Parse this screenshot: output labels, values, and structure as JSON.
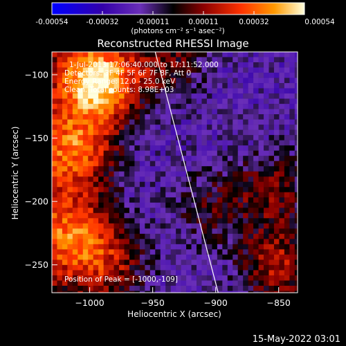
{
  "colors": {
    "background": "#000000",
    "colormap": [
      "#0000ff",
      "#4b0082",
      "#7a2fc8",
      "#000000",
      "#8b0000",
      "#ff3300",
      "#ff9900",
      "#ffff88",
      "#ffffff"
    ]
  },
  "colorbar": {
    "tick_labels": [
      "-0.00054",
      "-0.00032",
      "-0.00011",
      "0.00011",
      "0.00032",
      "0.00054"
    ],
    "units_label": "(photons cm⁻² s⁻¹ asec⁻²)",
    "range": [
      -0.00054,
      0.00054
    ]
  },
  "chart_data": {
    "type": "heatmap",
    "title": "Reconstructed RHESSI Image",
    "xlabel": "Heliocentric X (arcsec)",
    "ylabel": "Heliocentric Y (arcsec)",
    "xlim": [
      -1030,
      -835
    ],
    "ylim": [
      -272,
      -82
    ],
    "x_ticks": [
      -1000,
      -950,
      -900,
      -850
    ],
    "y_ticks": [
      -100,
      -150,
      -200,
      -250
    ],
    "x_tick_labels": [
      "−1000",
      "−950",
      "−900",
      "−850"
    ],
    "y_tick_labels": [
      "−100",
      "−150",
      "−200",
      "−250"
    ],
    "annotations": [
      "1-Jul-2013 17:06:40.000 to 17:11:52.000",
      "Detectors: 3F 4F 5F 6F 7F 8F, Att 0",
      "Energy Range: 12.0 - 25.0 keV",
      "Clean. Total counts: 8.98E+03"
    ],
    "peak_label": "Position of Peak = [-1000,-109]",
    "limb_line": [
      [
        -948,
        -82
      ],
      [
        -898,
        -272
      ]
    ],
    "sources": [
      {
        "x": -993,
        "y": -105,
        "strength": 1.0
      },
      {
        "x": -1012,
        "y": -160,
        "strength": 0.6
      },
      {
        "x": -1015,
        "y": -225,
        "strength": 0.55
      },
      {
        "x": -985,
        "y": -250,
        "strength": 0.4
      },
      {
        "x": -850,
        "y": -250,
        "strength": 0.5
      },
      {
        "x": -855,
        "y": -190,
        "strength": 0.35
      },
      {
        "x": -940,
        "y": -90,
        "strength": 0.35
      },
      {
        "x": -905,
        "y": -205,
        "strength": 0.25
      }
    ]
  },
  "footer": {
    "timestamp": "15-May-2022 03:01"
  }
}
